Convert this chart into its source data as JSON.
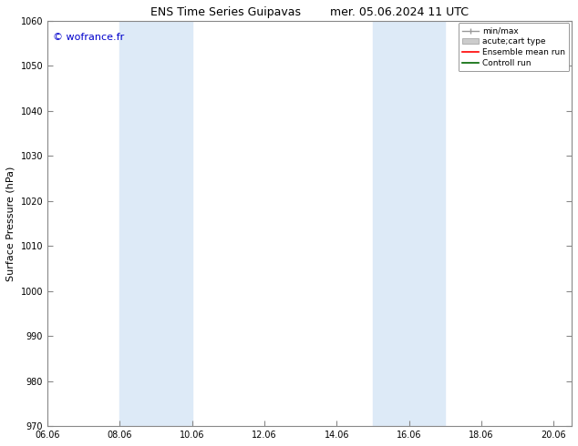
{
  "title_left": "ENS Time Series Guipavas",
  "title_right": "mer. 05.06.2024 11 UTC",
  "ylabel": "Surface Pressure (hPa)",
  "ylim": [
    970,
    1060
  ],
  "yticks": [
    970,
    980,
    990,
    1000,
    1010,
    1020,
    1030,
    1040,
    1050,
    1060
  ],
  "xlim": [
    0,
    14.5
  ],
  "xtick_labels": [
    "06.06",
    "08.06",
    "10.06",
    "12.06",
    "14.06",
    "16.06",
    "18.06",
    "20.06"
  ],
  "xtick_positions": [
    0,
    2,
    4,
    6,
    8,
    10,
    12,
    14
  ],
  "shaded_regions": [
    {
      "xmin": 2,
      "xmax": 4,
      "color": "#ddeaf7"
    },
    {
      "xmin": 9,
      "xmax": 11,
      "color": "#ddeaf7"
    }
  ],
  "watermark": "© wofrance.fr",
  "watermark_color": "#0000cc",
  "legend_entries": [
    {
      "label": "min/max",
      "color": "#999999"
    },
    {
      "label": "acute;cart type",
      "color": "#cccccc"
    },
    {
      "label": "Ensemble mean run",
      "color": "#ff0000"
    },
    {
      "label": "Controll run",
      "color": "#006600"
    }
  ],
  "bg_color": "#ffffff",
  "spine_color": "#888888",
  "title_fontsize": 9,
  "tick_fontsize": 7,
  "ylabel_fontsize": 8,
  "watermark_fontsize": 8,
  "legend_fontsize": 6.5
}
